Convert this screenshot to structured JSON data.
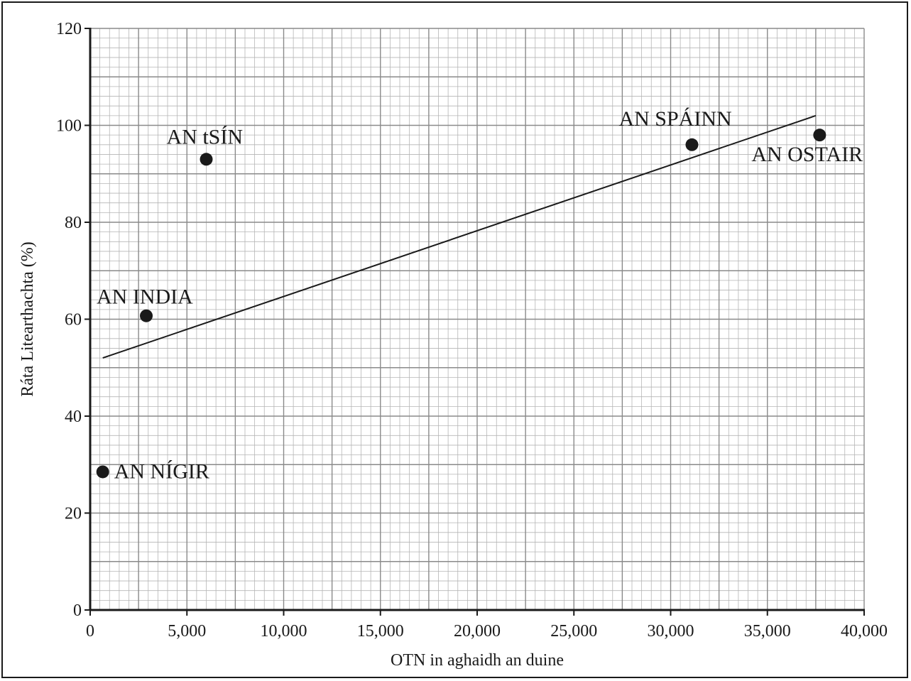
{
  "chart_data": {
    "type": "scatter",
    "xlabel": "OTN in aghaidh an duine",
    "ylabel": "Ráta Litearthachta (%)",
    "xlim": [
      0,
      40000
    ],
    "ylim": [
      0,
      120
    ],
    "x_ticks": [
      0,
      5000,
      10000,
      15000,
      20000,
      25000,
      30000,
      35000,
      40000
    ],
    "x_tick_labels": [
      "0",
      "5,000",
      "10,000",
      "15,000",
      "20,000",
      "25,000",
      "30,000",
      "35,000",
      "40,000"
    ],
    "y_ticks": [
      0,
      20,
      40,
      60,
      80,
      100,
      120
    ],
    "y_tick_labels": [
      "0",
      "20",
      "40",
      "60",
      "80",
      "100",
      "120"
    ],
    "grid": true,
    "points": [
      {
        "label": "AN NÍGIR",
        "x": 650,
        "y": 28.5
      },
      {
        "label": "AN INDIA",
        "x": 2900,
        "y": 60.7
      },
      {
        "label": "AN tSÍN",
        "x": 6000,
        "y": 93
      },
      {
        "label": "AN SPÁINN",
        "x": 31100,
        "y": 96
      },
      {
        "label": "AN OSTAIR",
        "x": 37700,
        "y": 98
      }
    ],
    "trend_line": {
      "x": [
        650,
        37500
      ],
      "y": [
        52,
        102
      ]
    }
  }
}
